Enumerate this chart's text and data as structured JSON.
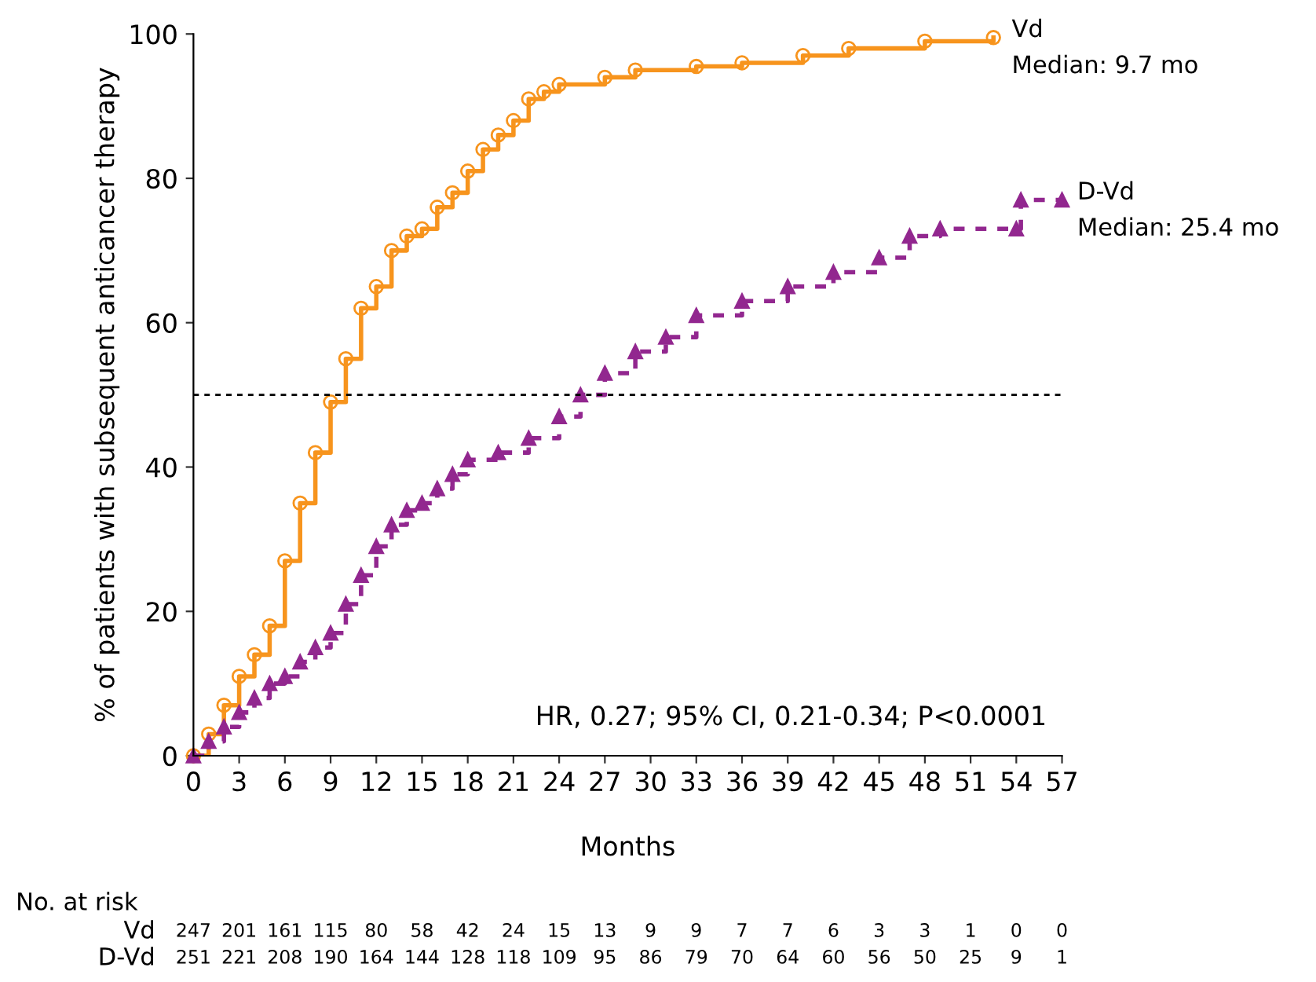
{
  "chart_data": {
    "type": "step",
    "ylabel": "% of patients with subsequent anticancer therapy",
    "xlabel": "Months",
    "xlim": [
      0,
      57
    ],
    "xticks": [
      0,
      3,
      6,
      9,
      12,
      15,
      18,
      21,
      24,
      27,
      30,
      33,
      36,
      39,
      42,
      45,
      48,
      51,
      54,
      57
    ],
    "ylim": [
      0,
      100
    ],
    "yticks": [
      0,
      20,
      40,
      60,
      80,
      100
    ],
    "grid": false,
    "legend": false,
    "series": [
      {
        "name": "Vd",
        "color": "#f7941d",
        "marker": "circle",
        "line_style": "solid",
        "x": [
          0,
          1,
          2,
          3,
          4,
          5,
          6,
          7,
          8,
          9,
          10,
          11,
          12,
          13,
          14,
          15,
          16,
          17,
          18,
          19,
          20,
          21,
          22,
          23,
          24,
          27,
          29,
          33,
          36,
          40,
          43,
          48,
          52.5
        ],
        "values": [
          0,
          3,
          7,
          11,
          14,
          18,
          27,
          35,
          42,
          49,
          55,
          62,
          65,
          70,
          72,
          73,
          76,
          78,
          81,
          84,
          86,
          88,
          91,
          92,
          93,
          94,
          95,
          95.5,
          96,
          97,
          98,
          99,
          99.5
        ]
      },
      {
        "name": "D-Vd",
        "color": "#92278f",
        "marker": "triangle",
        "line_style": "dashed",
        "x": [
          0,
          1,
          2,
          3,
          4,
          5,
          6,
          7,
          8,
          9,
          10,
          11,
          12,
          13,
          14,
          15,
          16,
          17,
          18,
          20,
          22,
          24,
          25.4,
          27,
          29,
          31,
          33,
          36,
          39,
          42,
          45,
          47,
          49,
          54,
          54.3,
          57
        ],
        "values": [
          0,
          2,
          4,
          6,
          8,
          10,
          11,
          13,
          15,
          17,
          21,
          25,
          29,
          32,
          34,
          35,
          37,
          39,
          41,
          42,
          44,
          47,
          50,
          53,
          56,
          58,
          61,
          63,
          65,
          67,
          69,
          72,
          73,
          73,
          77,
          77
        ]
      }
    ],
    "ref_lines": [
      {
        "axis": "y",
        "value": 50,
        "color": "#000000",
        "line_style": "dashed"
      }
    ],
    "annotations": [
      "Median: 9.7 mo",
      "Median: 25.4 mo",
      "HR, 0.27; 95% CI, 0.21-0.34; P<0.0001",
      "No. at risk",
      "Vd 247 201 161 115 80 58 42 24 15 13 9 9 7 7 6 3 3 1 0 0",
      "D-Vd 251 221 208 190 164 144 128 118 109 95 86 79 70 64 60 56 50 25 9 1"
    ]
  }
}
